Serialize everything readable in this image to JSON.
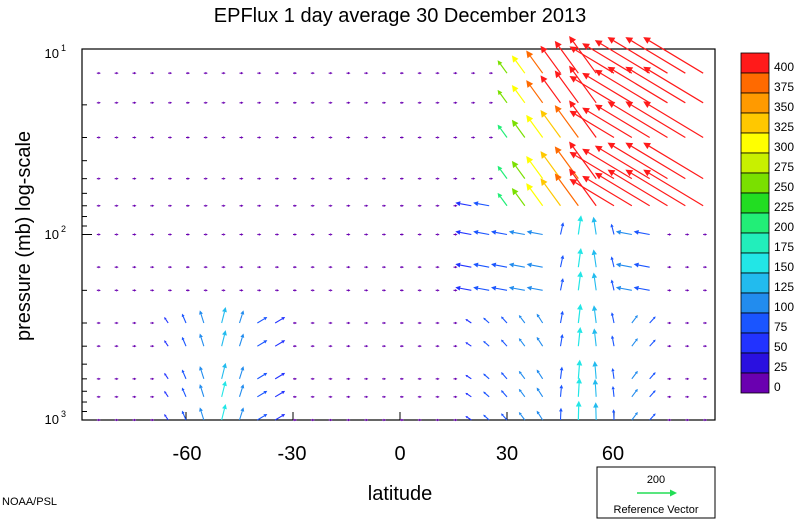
{
  "chart_data": {
    "type": "vector-field",
    "title": "EPFlux  1 day average  30 December  2013",
    "xlabel": "latitude",
    "ylabel": "pressure (mb)  log-scale",
    "x_ticks": [
      -60,
      -30,
      0,
      30,
      60
    ],
    "x_tick_labels": [
      "-60",
      "-30",
      "0",
      "30",
      "60"
    ],
    "xlim": [
      -90,
      90
    ],
    "y_scale": "log",
    "y_reversed": true,
    "ylim": [
      10,
      1000
    ],
    "y_ticks": [
      {
        "value": 10,
        "base": "10",
        "exp": "1"
      },
      {
        "value": 100,
        "base": "10",
        "exp": "2"
      },
      {
        "value": 1000,
        "base": "10",
        "exp": "3"
      }
    ],
    "color_scale": {
      "levels": [
        "400",
        "375",
        "350",
        "325",
        "300",
        "275",
        "250",
        "225",
        "200",
        "175",
        "150",
        "125",
        "100",
        "75",
        "50",
        "25",
        "0"
      ],
      "colors": [
        "#ff1a1a",
        "#ff6a00",
        "#ff9a00",
        "#ffc800",
        "#ffff00",
        "#c8f000",
        "#7ae000",
        "#22dd22",
        "#22ee77",
        "#22eebb",
        "#22e6e6",
        "#22bbee",
        "#228cee",
        "#1a55ff",
        "#2233ff",
        "#2a10e0",
        "#6a00b0"
      ],
      "swatch_below_lowest": "#6a00b0"
    },
    "reference_vector": {
      "magnitude": "200",
      "label": "Reference Vector",
      "color": "#22dd55"
    },
    "pressure_levels": [
      13.5,
      19.5,
      30,
      50,
      70,
      100,
      150,
      200,
      300,
      400,
      600,
      750,
      1000
    ],
    "vector_regions": [
      {
        "name": "high-latitude-upward-poleward",
        "lat": [
          30,
          80
        ],
        "p": [
          10,
          70
        ],
        "dir": "up-left",
        "mag": [
          200,
          900
        ]
      },
      {
        "name": "midlat-column",
        "lat": [
          45,
          60
        ],
        "p": [
          100,
          1000
        ],
        "dir": "up",
        "mag": [
          60,
          200
        ]
      },
      {
        "name": "subtropical-south",
        "lat": [
          -65,
          -35
        ],
        "p": [
          300,
          1000
        ],
        "dir": "up",
        "mag": [
          50,
          130
        ]
      },
      {
        "name": "background",
        "lat": [
          -85,
          85
        ],
        "p": [
          10,
          1000
        ],
        "dir": "mixed",
        "mag": [
          0,
          25
        ]
      }
    ]
  },
  "footer": {
    "source": "NOAA/PSL"
  }
}
